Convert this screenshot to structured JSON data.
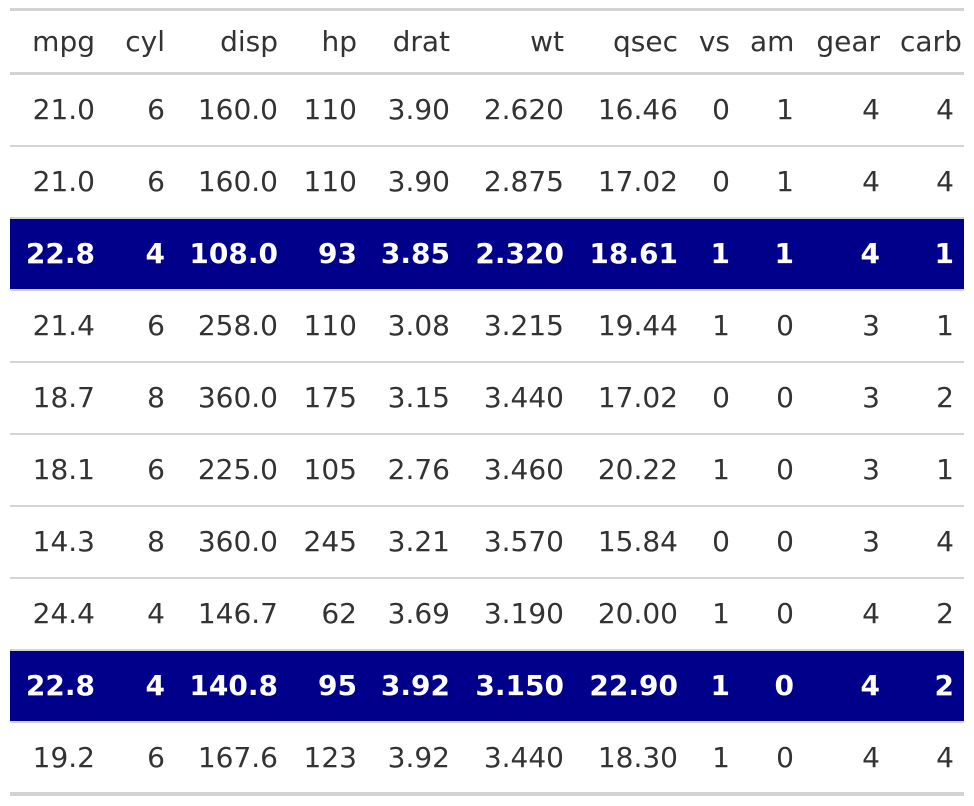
{
  "table": {
    "columns": [
      "mpg",
      "cyl",
      "disp",
      "hp",
      "drat",
      "wt",
      "qsec",
      "vs",
      "am",
      "gear",
      "carb"
    ],
    "rows": [
      {
        "cells": [
          "21.0",
          "6",
          "160.0",
          "110",
          "3.90",
          "2.620",
          "16.46",
          "0",
          "1",
          "4",
          "4"
        ],
        "highlighted": false
      },
      {
        "cells": [
          "21.0",
          "6",
          "160.0",
          "110",
          "3.90",
          "2.875",
          "17.02",
          "0",
          "1",
          "4",
          "4"
        ],
        "highlighted": false
      },
      {
        "cells": [
          "22.8",
          "4",
          "108.0",
          "93",
          "3.85",
          "2.320",
          "18.61",
          "1",
          "1",
          "4",
          "1"
        ],
        "highlighted": true
      },
      {
        "cells": [
          "21.4",
          "6",
          "258.0",
          "110",
          "3.08",
          "3.215",
          "19.44",
          "1",
          "0",
          "3",
          "1"
        ],
        "highlighted": false
      },
      {
        "cells": [
          "18.7",
          "8",
          "360.0",
          "175",
          "3.15",
          "3.440",
          "17.02",
          "0",
          "0",
          "3",
          "2"
        ],
        "highlighted": false
      },
      {
        "cells": [
          "18.1",
          "6",
          "225.0",
          "105",
          "2.76",
          "3.460",
          "20.22",
          "1",
          "0",
          "3",
          "1"
        ],
        "highlighted": false
      },
      {
        "cells": [
          "14.3",
          "8",
          "360.0",
          "245",
          "3.21",
          "3.570",
          "15.84",
          "0",
          "0",
          "3",
          "4"
        ],
        "highlighted": false
      },
      {
        "cells": [
          "24.4",
          "4",
          "146.7",
          "62",
          "3.69",
          "3.190",
          "20.00",
          "1",
          "0",
          "4",
          "2"
        ],
        "highlighted": false
      },
      {
        "cells": [
          "22.8",
          "4",
          "140.8",
          "95",
          "3.92",
          "3.150",
          "22.90",
          "1",
          "0",
          "4",
          "2"
        ],
        "highlighted": true
      },
      {
        "cells": [
          "19.2",
          "6",
          "167.6",
          "123",
          "3.92",
          "3.440",
          "18.30",
          "1",
          "0",
          "4",
          "4"
        ],
        "highlighted": false
      }
    ]
  },
  "colors": {
    "highlight_background": "#00008b",
    "highlight_text": "#ffffff",
    "text": "#333333",
    "rule": "#d3d3d3"
  }
}
